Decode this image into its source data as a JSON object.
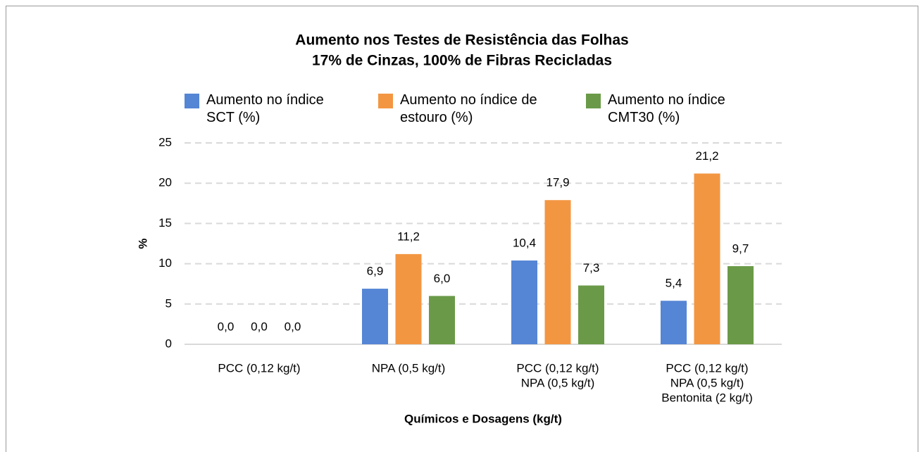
{
  "chart_data": {
    "type": "bar",
    "title": [
      "Aumento nos Testes de Resistência das Folhas",
      "17% de Cinzas, 100% de Fibras Recicladas"
    ],
    "x_label": "Químicos e Dosagens (kg/t)",
    "y_label": "%",
    "categories": [
      [
        "PCC (0,12 kg/t)"
      ],
      [
        "NPA (0,5 kg/t)"
      ],
      [
        "PCC (0,12 kg/t)",
        "NPA (0,5 kg/t)"
      ],
      [
        "PCC (0,12 kg/t)",
        "NPA (0,5 kg/t)",
        "Bentonita (2 kg/t)"
      ]
    ],
    "series": [
      {
        "name": "Aumento no índice SCT (%)",
        "color": "#5585d5",
        "values": [
          0,
          6.9,
          10.4,
          5.4
        ],
        "value_labels": [
          "0,0",
          "6,9",
          "10,4",
          "5,4"
        ]
      },
      {
        "name": "Aumento no índice de estouro (%)",
        "color": "#f39642",
        "values": [
          0,
          11.2,
          17.9,
          21.2
        ],
        "value_labels": [
          "0,0",
          "11,2",
          "17,9",
          "21,2"
        ]
      },
      {
        "name": "Aumento no índice CMT30 (%)",
        "color": "#6a9a48",
        "values": [
          0,
          6.0,
          7.3,
          9.7
        ],
        "value_labels": [
          "0,0",
          "6,0",
          "7,3",
          "9,7"
        ]
      }
    ],
    "ylim": [
      0,
      25
    ],
    "yticks": [
      0,
      5,
      10,
      15,
      20,
      25
    ],
    "grid": true,
    "legend": "top"
  }
}
